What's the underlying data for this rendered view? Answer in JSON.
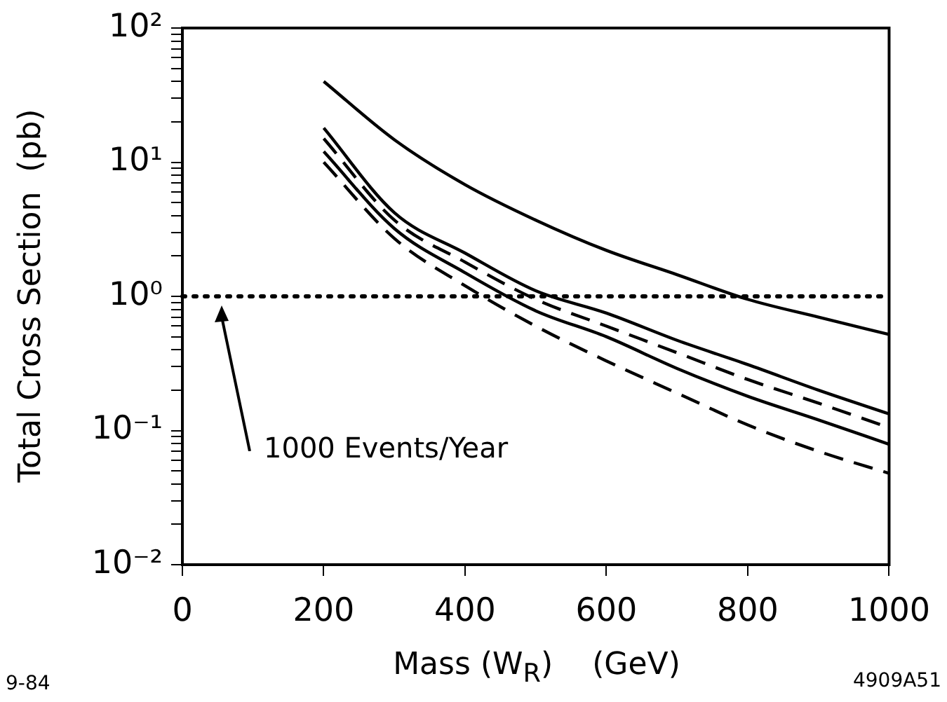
{
  "chart_data": {
    "type": "line",
    "xlabel": "Mass (W$_{R}$)    (GeV)",
    "ylabel": "Total Cross Section  (pb)",
    "annotations": [
      "9-84",
      "4909A51"
    ],
    "xlim": [
      0,
      1000
    ],
    "xticks": [
      0,
      200,
      400,
      600,
      800,
      1000
    ],
    "ylim": [
      0.01,
      100
    ],
    "yticks": [
      {
        "value": 0.01,
        "label": "10⁻²"
      },
      {
        "value": 0.02,
        "label": null
      },
      {
        "value": 0.03,
        "label": null
      },
      {
        "value": 0.04,
        "label": null
      },
      {
        "value": 0.05,
        "label": null
      },
      {
        "value": 0.06,
        "label": null
      },
      {
        "value": 0.07,
        "label": null
      },
      {
        "value": 0.08,
        "label": null
      },
      {
        "value": 0.09,
        "label": null
      },
      {
        "value": 0.1,
        "label": "10⁻¹"
      },
      {
        "value": 0.2,
        "label": null
      },
      {
        "value": 0.3,
        "label": null
      },
      {
        "value": 0.4,
        "label": null
      },
      {
        "value": 0.5,
        "label": null
      },
      {
        "value": 0.6,
        "label": null
      },
      {
        "value": 0.7,
        "label": null
      },
      {
        "value": 0.8,
        "label": null
      },
      {
        "value": 0.9,
        "label": null
      },
      {
        "value": 1,
        "label": "10⁰"
      },
      {
        "value": 2,
        "label": null
      },
      {
        "value": 3,
        "label": null
      },
      {
        "value": 4,
        "label": null
      },
      {
        "value": 5,
        "label": null
      },
      {
        "value": 6,
        "label": null
      },
      {
        "value": 7,
        "label": null
      },
      {
        "value": 8,
        "label": null
      },
      {
        "value": 9,
        "label": null
      },
      {
        "value": 10,
        "label": "10¹"
      },
      {
        "value": 20,
        "label": null
      },
      {
        "value": 30,
        "label": null
      },
      {
        "value": 40,
        "label": null
      },
      {
        "value": 50,
        "label": null
      },
      {
        "value": 60,
        "label": null
      },
      {
        "value": 70,
        "label": null
      },
      {
        "value": 80,
        "label": null
      },
      {
        "value": 90,
        "label": null
      },
      {
        "value": 100,
        "label": "10²"
      }
    ],
    "log": "y",
    "grid": false,
    "legend": false,
    "marker": "none",
    "x": [
      200,
      300,
      400,
      500,
      600,
      700,
      800,
      900,
      1000
    ],
    "series": [
      {
        "color": "#000000",
        "line_style": "solid",
        "values": [
          40,
          14.7,
          6.8,
          3.7,
          2.2,
          1.45,
          0.95,
          0.7,
          0.52
        ]
      },
      {
        "color": "#000000",
        "line_style": "solid",
        "values": [
          18,
          4.2,
          2.1,
          1.1,
          0.75,
          0.47,
          0.31,
          0.2,
          0.133
        ]
      },
      {
        "color": "#000000",
        "line_style": "dashed",
        "values": [
          15,
          3.7,
          1.8,
          0.95,
          0.6,
          0.38,
          0.24,
          0.16,
          0.105
        ]
      },
      {
        "color": "#000000",
        "line_style": "solid",
        "values": [
          12,
          3.2,
          1.5,
          0.78,
          0.5,
          0.29,
          0.18,
          0.12,
          0.079
        ]
      },
      {
        "color": "#000000",
        "line_style": "dashed",
        "values": [
          10,
          2.7,
          1.2,
          0.6,
          0.33,
          0.19,
          0.11,
          0.07,
          0.048
        ]
      }
    ],
    "ref_lines": [
      {
        "axis": "y",
        "value": 1,
        "label": "1000 Events/Year",
        "line_style": "dotted",
        "color": "#000000"
      }
    ]
  }
}
